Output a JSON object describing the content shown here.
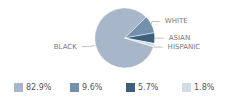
{
  "chart_data": {
    "type": "pie",
    "categories": [
      "BLACK",
      "WHITE",
      "ASIAN",
      "HISPANIC"
    ],
    "values": [
      82.9,
      9.6,
      5.7,
      1.8
    ],
    "value_labels": [
      "82.9%",
      "9.6%",
      "5.7%",
      "1.8%"
    ],
    "colors": [
      "#a7b7c9",
      "#7390ad",
      "#3f5d7d",
      "#d3dce6"
    ],
    "data_labels": false
  }
}
